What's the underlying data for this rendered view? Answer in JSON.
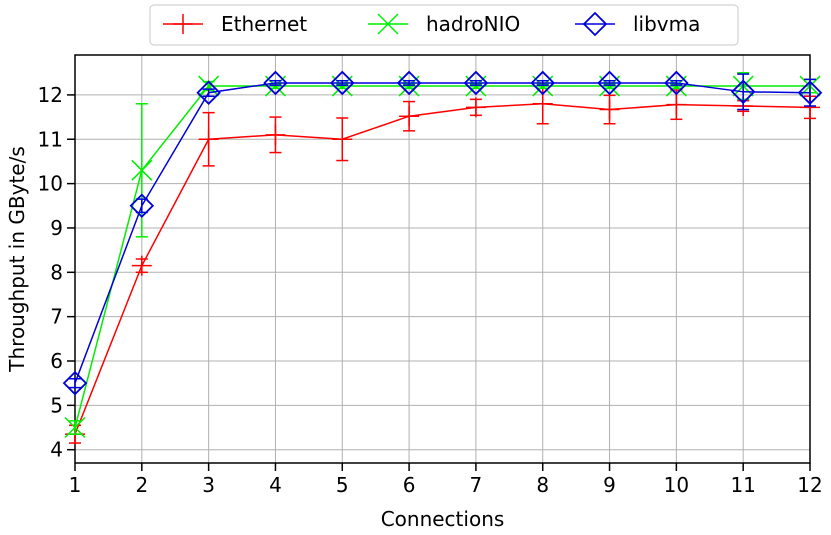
{
  "chart_data": {
    "type": "line",
    "xlabel": "Connections",
    "ylabel": "Throughput in GByte/s",
    "xlim": [
      1,
      12
    ],
    "ylim": [
      3.7,
      12.9
    ],
    "x_ticks": [
      1,
      2,
      3,
      4,
      5,
      6,
      7,
      8,
      9,
      10,
      11,
      12
    ],
    "y_ticks": [
      4,
      5,
      6,
      7,
      8,
      9,
      10,
      11,
      12
    ],
    "grid": true,
    "legend_position": "top-center, above plot",
    "x": [
      1,
      2,
      3,
      4,
      5,
      6,
      7,
      8,
      9,
      10,
      11,
      12
    ],
    "series": [
      {
        "name": "Ethernet",
        "color": "#ff0000",
        "marker": "plus",
        "values": [
          4.35,
          8.15,
          11.0,
          11.1,
          11.0,
          11.52,
          11.72,
          11.8,
          11.67,
          11.78,
          11.75,
          11.72
        ],
        "errors": [
          0.2,
          0.15,
          0.6,
          0.4,
          0.48,
          0.33,
          0.18,
          0.45,
          0.32,
          0.33,
          0.12,
          0.25
        ]
      },
      {
        "name": "hadroNIO",
        "color": "#00ee00",
        "marker": "x",
        "values": [
          4.5,
          10.3,
          12.2,
          12.2,
          12.2,
          12.2,
          12.2,
          12.2,
          12.2,
          12.2,
          12.2,
          12.2
        ],
        "errors": [
          0.15,
          1.5,
          0.1,
          0.05,
          0.05,
          0.05,
          0.05,
          0.05,
          0.05,
          0.05,
          0.3,
          0.15
        ]
      },
      {
        "name": "libvma",
        "color": "#0000dd",
        "marker": "diamond",
        "values": [
          5.5,
          9.5,
          12.05,
          12.27,
          12.27,
          12.27,
          12.27,
          12.27,
          12.27,
          12.27,
          12.07,
          12.05
        ],
        "errors": [
          0.1,
          0.15,
          0.08,
          0.05,
          0.05,
          0.05,
          0.05,
          0.05,
          0.05,
          0.05,
          0.4,
          0.3
        ]
      }
    ]
  }
}
